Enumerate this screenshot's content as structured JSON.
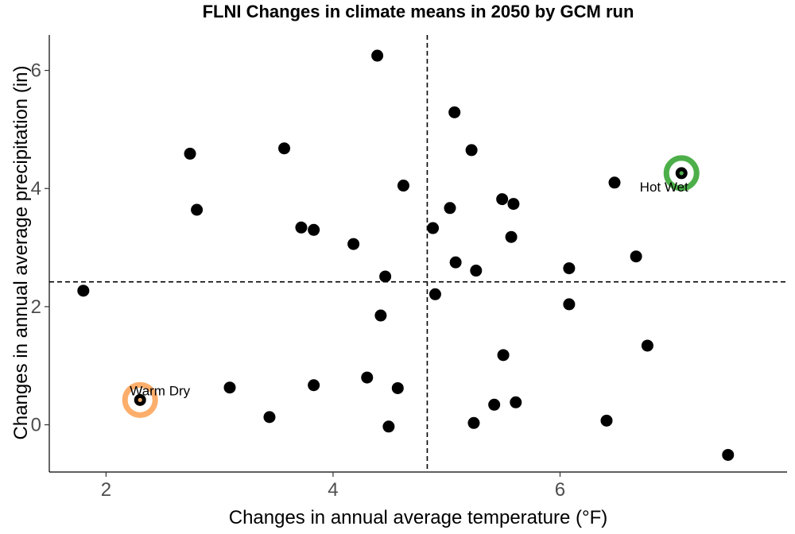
{
  "chart_data": {
    "type": "scatter",
    "title": "FLNI Changes in climate means in 2050 by GCM run",
    "xlabel": "Changes in annual average temperature (°F)",
    "ylabel": "Changes in annual average precipitation (in)",
    "xlim": [
      1.5,
      8.0
    ],
    "ylim": [
      -0.8,
      6.6
    ],
    "x_ticks": [
      2,
      4,
      6
    ],
    "y_ticks": [
      0,
      2,
      4,
      6
    ],
    "x_tick_labels": [
      "2",
      "4",
      "6"
    ],
    "y_tick_labels": [
      "0",
      "2",
      "4",
      "6"
    ],
    "grid": false,
    "reference_lines": {
      "vertical_x": 4.83,
      "horizontal_y": 2.42
    },
    "points": [
      {
        "x": 1.8,
        "y": 2.27
      },
      {
        "x": 2.3,
        "y": 0.42
      },
      {
        "x": 2.74,
        "y": 4.59
      },
      {
        "x": 2.8,
        "y": 3.64
      },
      {
        "x": 3.09,
        "y": 0.63
      },
      {
        "x": 3.44,
        "y": 0.13
      },
      {
        "x": 3.57,
        "y": 4.68
      },
      {
        "x": 3.72,
        "y": 3.34
      },
      {
        "x": 3.83,
        "y": 3.3
      },
      {
        "x": 3.83,
        "y": 0.67
      },
      {
        "x": 4.18,
        "y": 3.06
      },
      {
        "x": 4.3,
        "y": 0.8
      },
      {
        "x": 4.39,
        "y": 6.25
      },
      {
        "x": 4.42,
        "y": 1.85
      },
      {
        "x": 4.46,
        "y": 2.51
      },
      {
        "x": 4.49,
        "y": -0.03
      },
      {
        "x": 4.57,
        "y": 0.62
      },
      {
        "x": 4.62,
        "y": 4.05
      },
      {
        "x": 4.88,
        "y": 3.33
      },
      {
        "x": 4.9,
        "y": 2.21
      },
      {
        "x": 5.03,
        "y": 3.67
      },
      {
        "x": 5.07,
        "y": 5.29
      },
      {
        "x": 5.08,
        "y": 2.75
      },
      {
        "x": 5.22,
        "y": 4.65
      },
      {
        "x": 5.24,
        "y": 0.03
      },
      {
        "x": 5.26,
        "y": 2.61
      },
      {
        "x": 5.42,
        "y": 0.34
      },
      {
        "x": 5.49,
        "y": 3.82
      },
      {
        "x": 5.5,
        "y": 1.18
      },
      {
        "x": 5.57,
        "y": 3.18
      },
      {
        "x": 5.59,
        "y": 3.74
      },
      {
        "x": 5.61,
        "y": 0.38
      },
      {
        "x": 6.08,
        "y": 2.65
      },
      {
        "x": 6.08,
        "y": 2.04
      },
      {
        "x": 6.41,
        "y": 0.07
      },
      {
        "x": 6.48,
        "y": 4.1
      },
      {
        "x": 6.67,
        "y": 2.85
      },
      {
        "x": 6.77,
        "y": 1.34
      },
      {
        "x": 7.07,
        "y": 4.26
      },
      {
        "x": 7.48,
        "y": -0.51
      }
    ],
    "highlights": [
      {
        "label": "Warm Dry",
        "x": 2.3,
        "y": 0.42,
        "color": "#fdae6b"
      },
      {
        "label": "Hot Wet",
        "x": 7.07,
        "y": 4.26,
        "color": "#4daf4a"
      }
    ],
    "point_color": "#000000"
  }
}
